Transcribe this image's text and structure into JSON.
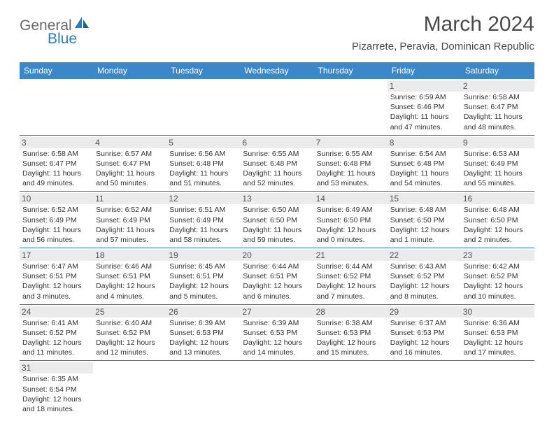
{
  "brand": {
    "name_gray": "General",
    "name_blue": "Blue"
  },
  "title": "March 2024",
  "location": "Pizarrete, Peravia, Dominican Republic",
  "header_bg": "#3b87c8",
  "header_text_color": "#ffffff",
  "divider_color": "#2a7fba",
  "daynum_bg": "#ebebeb",
  "day_headers": [
    "Sunday",
    "Monday",
    "Tuesday",
    "Wednesday",
    "Thursday",
    "Friday",
    "Saturday"
  ],
  "weeks": [
    [
      null,
      null,
      null,
      null,
      null,
      {
        "n": "1",
        "sr": "6:59 AM",
        "ss": "6:46 PM",
        "dl": "11 hours and 47 minutes."
      },
      {
        "n": "2",
        "sr": "6:58 AM",
        "ss": "6:47 PM",
        "dl": "11 hours and 48 minutes."
      }
    ],
    [
      {
        "n": "3",
        "sr": "6:58 AM",
        "ss": "6:47 PM",
        "dl": "11 hours and 49 minutes."
      },
      {
        "n": "4",
        "sr": "6:57 AM",
        "ss": "6:47 PM",
        "dl": "11 hours and 50 minutes."
      },
      {
        "n": "5",
        "sr": "6:56 AM",
        "ss": "6:48 PM",
        "dl": "11 hours and 51 minutes."
      },
      {
        "n": "6",
        "sr": "6:55 AM",
        "ss": "6:48 PM",
        "dl": "11 hours and 52 minutes."
      },
      {
        "n": "7",
        "sr": "6:55 AM",
        "ss": "6:48 PM",
        "dl": "11 hours and 53 minutes."
      },
      {
        "n": "8",
        "sr": "6:54 AM",
        "ss": "6:48 PM",
        "dl": "11 hours and 54 minutes."
      },
      {
        "n": "9",
        "sr": "6:53 AM",
        "ss": "6:49 PM",
        "dl": "11 hours and 55 minutes."
      }
    ],
    [
      {
        "n": "10",
        "sr": "6:52 AM",
        "ss": "6:49 PM",
        "dl": "11 hours and 56 minutes."
      },
      {
        "n": "11",
        "sr": "6:52 AM",
        "ss": "6:49 PM",
        "dl": "11 hours and 57 minutes."
      },
      {
        "n": "12",
        "sr": "6:51 AM",
        "ss": "6:49 PM",
        "dl": "11 hours and 58 minutes."
      },
      {
        "n": "13",
        "sr": "6:50 AM",
        "ss": "6:50 PM",
        "dl": "11 hours and 59 minutes."
      },
      {
        "n": "14",
        "sr": "6:49 AM",
        "ss": "6:50 PM",
        "dl": "12 hours and 0 minutes."
      },
      {
        "n": "15",
        "sr": "6:48 AM",
        "ss": "6:50 PM",
        "dl": "12 hours and 1 minute."
      },
      {
        "n": "16",
        "sr": "6:48 AM",
        "ss": "6:50 PM",
        "dl": "12 hours and 2 minutes."
      }
    ],
    [
      {
        "n": "17",
        "sr": "6:47 AM",
        "ss": "6:51 PM",
        "dl": "12 hours and 3 minutes."
      },
      {
        "n": "18",
        "sr": "6:46 AM",
        "ss": "6:51 PM",
        "dl": "12 hours and 4 minutes."
      },
      {
        "n": "19",
        "sr": "6:45 AM",
        "ss": "6:51 PM",
        "dl": "12 hours and 5 minutes."
      },
      {
        "n": "20",
        "sr": "6:44 AM",
        "ss": "6:51 PM",
        "dl": "12 hours and 6 minutes."
      },
      {
        "n": "21",
        "sr": "6:44 AM",
        "ss": "6:52 PM",
        "dl": "12 hours and 7 minutes."
      },
      {
        "n": "22",
        "sr": "6:43 AM",
        "ss": "6:52 PM",
        "dl": "12 hours and 8 minutes."
      },
      {
        "n": "23",
        "sr": "6:42 AM",
        "ss": "6:52 PM",
        "dl": "12 hours and 10 minutes."
      }
    ],
    [
      {
        "n": "24",
        "sr": "6:41 AM",
        "ss": "6:52 PM",
        "dl": "12 hours and 11 minutes."
      },
      {
        "n": "25",
        "sr": "6:40 AM",
        "ss": "6:52 PM",
        "dl": "12 hours and 12 minutes."
      },
      {
        "n": "26",
        "sr": "6:39 AM",
        "ss": "6:53 PM",
        "dl": "12 hours and 13 minutes."
      },
      {
        "n": "27",
        "sr": "6:39 AM",
        "ss": "6:53 PM",
        "dl": "12 hours and 14 minutes."
      },
      {
        "n": "28",
        "sr": "6:38 AM",
        "ss": "6:53 PM",
        "dl": "12 hours and 15 minutes."
      },
      {
        "n": "29",
        "sr": "6:37 AM",
        "ss": "6:53 PM",
        "dl": "12 hours and 16 minutes."
      },
      {
        "n": "30",
        "sr": "6:36 AM",
        "ss": "6:53 PM",
        "dl": "12 hours and 17 minutes."
      }
    ],
    [
      {
        "n": "31",
        "sr": "6:35 AM",
        "ss": "6:54 PM",
        "dl": "12 hours and 18 minutes."
      },
      null,
      null,
      null,
      null,
      null,
      null
    ]
  ],
  "labels": {
    "sunrise": "Sunrise:",
    "sunset": "Sunset:",
    "daylight": "Daylight:"
  }
}
